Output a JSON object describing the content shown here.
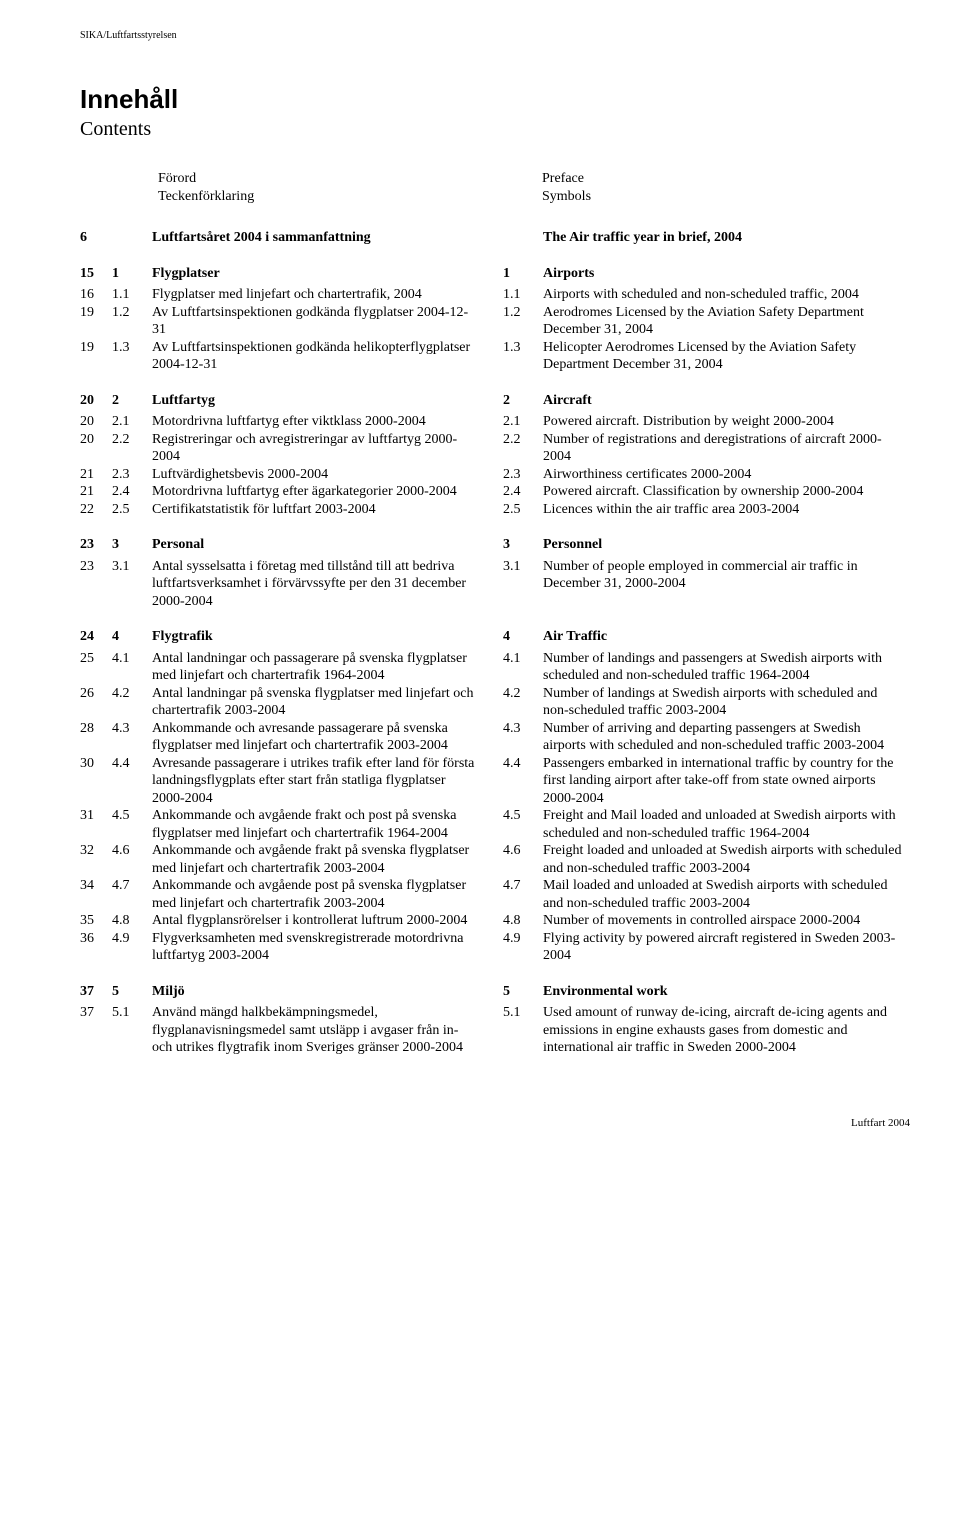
{
  "header": "SIKA/Luftfartsstyrelsen",
  "title_sv": "Innehåll",
  "title_en": "Contents",
  "preface_left": [
    "Förord",
    "Teckenförklaring"
  ],
  "preface_right": [
    "Preface",
    "Symbols"
  ],
  "sections": [
    {
      "head_left": {
        "pg": "6",
        "num": "",
        "txt": "Luftfartsåret 2004 i sammanfattning"
      },
      "head_right": {
        "num": "",
        "txt": "The Air traffic year in brief, 2004"
      },
      "rows": []
    },
    {
      "head_left": {
        "pg": "15",
        "num": "1",
        "txt": "Flygplatser"
      },
      "head_right": {
        "num": "1",
        "txt": "Airports"
      },
      "rows": [
        {
          "l": {
            "pg": "16",
            "num": "1.1",
            "txt": "Flygplatser med linjefart och chartertrafik, 2004"
          },
          "r": {
            "num": "1.1",
            "txt": "Airports with scheduled and non-scheduled traffic, 2004"
          }
        },
        {
          "l": {
            "pg": "19",
            "num": "1.2",
            "txt": "Av Luftfartsinspektionen godkända flygplatser 2004-12-31"
          },
          "r": {
            "num": "1.2",
            "txt": "Aerodromes Licensed by the Aviation Safety Department December 31, 2004"
          }
        },
        {
          "l": {
            "pg": "19",
            "num": "1.3",
            "txt": "Av Luftfartsinspektionen godkända helikopterflygplatser 2004-12-31"
          },
          "r": {
            "num": "1.3",
            "txt": "Helicopter Aerodromes Licensed by the Aviation Safety Department  December 31, 2004"
          }
        }
      ]
    },
    {
      "head_left": {
        "pg": "20",
        "num": "2",
        "txt": "Luftfartyg"
      },
      "head_right": {
        "num": "2",
        "txt": "Aircraft"
      },
      "rows": [
        {
          "l": {
            "pg": "20",
            "num": "2.1",
            "txt": "Motordrivna luftfartyg efter viktklass 2000-2004"
          },
          "r": {
            "num": "2.1",
            "txt": "Powered aircraft. Distribution by weight 2000-2004"
          }
        },
        {
          "l": {
            "pg": "20",
            "num": "2.2",
            "txt": "Registreringar och avregistreringar av luftfartyg 2000-2004"
          },
          "r": {
            "num": "2.2",
            "txt": "Number of registrations and deregistrations of aircraft 2000-2004"
          }
        },
        {
          "l": {
            "pg": "21",
            "num": "2.3",
            "txt": "Luftvärdighetsbevis 2000-2004"
          },
          "r": {
            "num": "2.3",
            "txt": "Airworthiness certificates 2000-2004"
          }
        },
        {
          "l": {
            "pg": "21",
            "num": "2.4",
            "txt": "Motordrivna luftfartyg efter ägarkategorier 2000-2004"
          },
          "r": {
            "num": "2.4",
            "txt": "Powered aircraft. Classification by ownership 2000-2004"
          }
        },
        {
          "l": {
            "pg": "22",
            "num": "2.5",
            "txt": "Certifikatstatistik för luftfart 2003-2004"
          },
          "r": {
            "num": "2.5",
            "txt": "Licences within the air traffic area 2003-2004"
          }
        }
      ]
    },
    {
      "head_left": {
        "pg": "23",
        "num": "3",
        "txt": "Personal"
      },
      "head_right": {
        "num": "3",
        "txt": "Personnel"
      },
      "rows": [
        {
          "l": {
            "pg": "23",
            "num": "3.1",
            "txt": "Antal sysselsatta i företag med tillstånd till att bedriva luftfartsverksamhet i förvärvssyfte per den 31 december 2000-2004"
          },
          "r": {
            "num": "3.1",
            "txt": "Number of people employed in commercial air traffic in December 31, 2000-2004"
          }
        }
      ]
    },
    {
      "head_left": {
        "pg": "24",
        "num": "4",
        "txt": "Flygtrafik"
      },
      "head_right": {
        "num": "4",
        "txt": "Air Traffic"
      },
      "rows": [
        {
          "l": {
            "pg": "25",
            "num": "4.1",
            "txt": "Antal landningar och passagerare på svenska flygplatser med linjefart och chartertrafik 1964-2004"
          },
          "r": {
            "num": "4.1",
            "txt": "Number of landings and passengers at Swedish airports with scheduled and non-scheduled traffic 1964-2004"
          }
        },
        {
          "l": {
            "pg": "26",
            "num": "4.2",
            "txt": "Antal landningar på svenska flygplatser med linjefart och chartertrafik 2003-2004"
          },
          "r": {
            "num": "4.2",
            "txt": "Number of landings at Swedish airports with scheduled and non-scheduled traffic 2003-2004"
          }
        },
        {
          "l": {
            "pg": "28",
            "num": "4.3",
            "txt": "Ankommande och avresande passagerare på svenska flygplatser med linjefart och chartertrafik 2003-2004"
          },
          "r": {
            "num": "4.3",
            "txt": "Number of arriving and departing passengers at Swedish airports with scheduled and non-scheduled traffic 2003-2004"
          }
        },
        {
          "l": {
            "pg": "30",
            "num": "4.4",
            "txt": "Avresande passagerare i utrikes trafik efter land för första landningsflygplats efter start från statliga flygplatser 2000-2004"
          },
          "r": {
            "num": "4.4",
            "txt": "Passengers embarked in international traffic by country for the first landing airport after take-off from state owned airports 2000-2004"
          }
        },
        {
          "l": {
            "pg": "31",
            "num": "4.5",
            "txt": "Ankommande och avgående frakt och post på svenska flygplatser med linjefart och chartertrafik 1964-2004"
          },
          "r": {
            "num": "4.5",
            "txt": "Freight and Mail loaded and unloaded at Swedish airports with scheduled and non-scheduled traffic 1964-2004"
          }
        },
        {
          "l": {
            "pg": "32",
            "num": "4.6",
            "txt": "Ankommande och avgående frakt på svenska flygplatser med linjefart och chartertrafik 2003-2004"
          },
          "r": {
            "num": "4.6",
            "txt": "Freight loaded and unloaded at Swedish airports with scheduled and non-scheduled traffic 2003-2004"
          }
        },
        {
          "l": {
            "pg": "34",
            "num": "4.7",
            "txt": "Ankommande och avgående post på svenska flygplatser med linjefart och chartertrafik 2003-2004"
          },
          "r": {
            "num": "4.7",
            "txt": "Mail loaded and unloaded at Swedish airports with scheduled and non-scheduled traffic 2003-2004"
          }
        },
        {
          "l": {
            "pg": "35",
            "num": "4.8",
            "txt": "Antal flygplansrörelser i kontrollerat luftrum 2000-2004"
          },
          "r": {
            "num": "4.8",
            "txt": "Number of movements in controlled airspace 2000-2004"
          }
        },
        {
          "l": {
            "pg": "36",
            "num": "4.9",
            "txt": "Flygverksamheten med svenskregistrerade motordrivna luftfartyg 2003-2004"
          },
          "r": {
            "num": "4.9",
            "txt": "Flying activity by powered aircraft registered in Sweden 2003-2004"
          }
        }
      ]
    },
    {
      "head_left": {
        "pg": "37",
        "num": "5",
        "txt": "Miljö"
      },
      "head_right": {
        "num": "5",
        "txt": "Environmental work"
      },
      "rows": [
        {
          "l": {
            "pg": "37",
            "num": "5.1",
            "txt": "Använd mängd halkbekämpningsmedel, flygplanavisningsmedel samt utsläpp i avgaser från in- och utrikes flygtrafik inom Sveriges gränser 2000-2004"
          },
          "r": {
            "num": "5.1",
            "txt": "Used amount of runway de-icing, aircraft de-icing agents and emissions in engine exhausts gases from domestic and international air traffic in Sweden 2000-2004"
          }
        }
      ]
    }
  ],
  "footer": "Luftfart 2004"
}
